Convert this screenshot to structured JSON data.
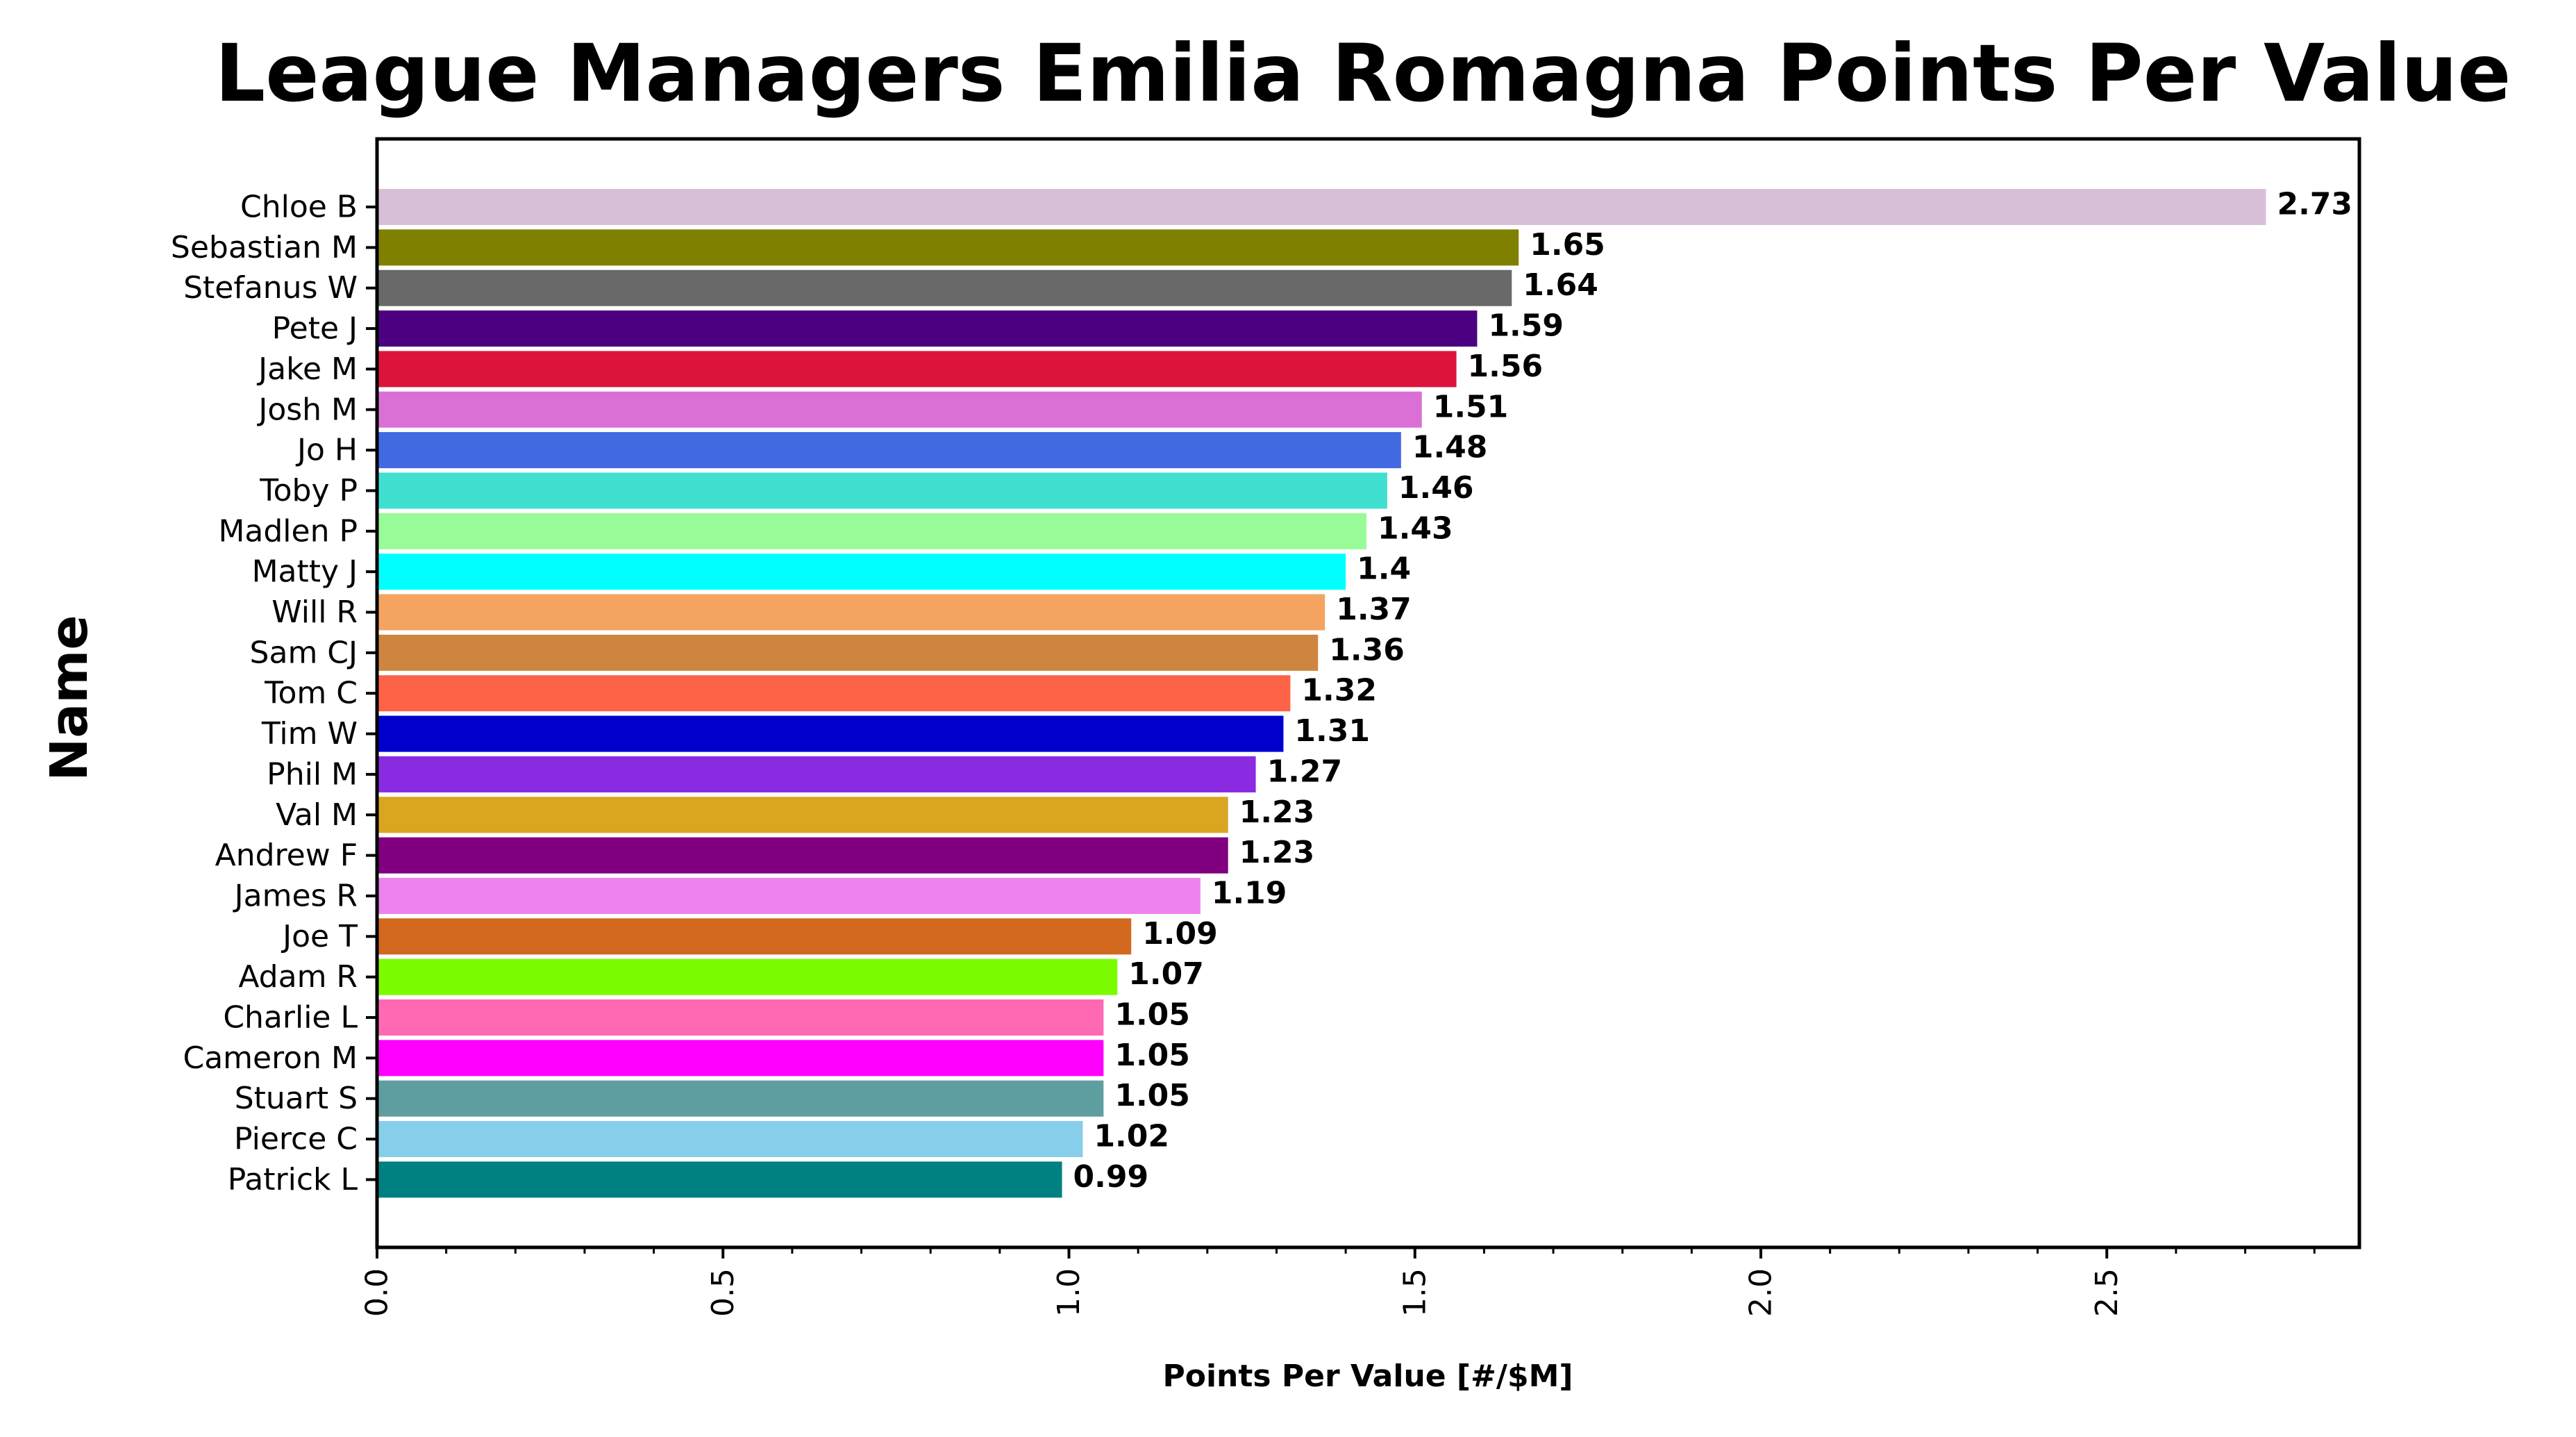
{
  "chart_data": {
    "type": "bar",
    "orientation": "horizontal",
    "title": "League Managers Emilia Romagna Points Per Value",
    "xlabel": "Points Per Value [#/$M]",
    "ylabel": "Name",
    "xlim": [
      0,
      2.865
    ],
    "x_ticks": [
      "0.0",
      "0.5",
      "1.0",
      "1.5",
      "2.0",
      "2.5"
    ],
    "x_tick_values": [
      0,
      0.5,
      1.0,
      1.5,
      2.0,
      2.5
    ],
    "minor_tick_step": 0.1,
    "grid": false,
    "legend": "none",
    "bars": [
      {
        "name": "Chloe B",
        "value": 2.73,
        "label": "2.73",
        "color": "#D8BFD8"
      },
      {
        "name": "Sebastian M",
        "value": 1.65,
        "label": "1.65",
        "color": "#808000"
      },
      {
        "name": "Stefanus W",
        "value": 1.64,
        "label": "1.64",
        "color": "#696969"
      },
      {
        "name": "Pete J",
        "value": 1.59,
        "label": "1.59",
        "color": "#4B0082"
      },
      {
        "name": "Jake M",
        "value": 1.56,
        "label": "1.56",
        "color": "#DC143C"
      },
      {
        "name": "Josh M",
        "value": 1.51,
        "label": "1.51",
        "color": "#DA70D6"
      },
      {
        "name": "Jo H",
        "value": 1.48,
        "label": "1.48",
        "color": "#4169E1"
      },
      {
        "name": "Toby P",
        "value": 1.46,
        "label": "1.46",
        "color": "#40E0D0"
      },
      {
        "name": "Madlen P",
        "value": 1.43,
        "label": "1.43",
        "color": "#98FB98"
      },
      {
        "name": "Matty J",
        "value": 1.4,
        "label": "1.4",
        "color": "#00FFFF"
      },
      {
        "name": "Will R",
        "value": 1.37,
        "label": "1.37",
        "color": "#F4A460"
      },
      {
        "name": "Sam CJ",
        "value": 1.36,
        "label": "1.36",
        "color": "#CD853F"
      },
      {
        "name": "Tom C",
        "value": 1.32,
        "label": "1.32",
        "color": "#FF6347"
      },
      {
        "name": "Tim W",
        "value": 1.31,
        "label": "1.31",
        "color": "#0000CD"
      },
      {
        "name": "Phil M",
        "value": 1.27,
        "label": "1.27",
        "color": "#8A2BE2"
      },
      {
        "name": "Val M",
        "value": 1.23,
        "label": "1.23",
        "color": "#DAA520"
      },
      {
        "name": "Andrew F",
        "value": 1.23,
        "label": "1.23",
        "color": "#800080"
      },
      {
        "name": "James R",
        "value": 1.19,
        "label": "1.19",
        "color": "#EE82EE"
      },
      {
        "name": "Joe T",
        "value": 1.09,
        "label": "1.09",
        "color": "#D2691E"
      },
      {
        "name": "Adam R",
        "value": 1.07,
        "label": "1.07",
        "color": "#7CFC00"
      },
      {
        "name": "Charlie L",
        "value": 1.05,
        "label": "1.05",
        "color": "#FF69B4"
      },
      {
        "name": "Cameron M",
        "value": 1.05,
        "label": "1.05",
        "color": "#FF00FF"
      },
      {
        "name": "Stuart S",
        "value": 1.05,
        "label": "1.05",
        "color": "#5F9EA0"
      },
      {
        "name": "Pierce C",
        "value": 1.02,
        "label": "1.02",
        "color": "#87CEEB"
      },
      {
        "name": "Patrick L",
        "value": 0.99,
        "label": "0.99",
        "color": "#008080"
      }
    ]
  }
}
